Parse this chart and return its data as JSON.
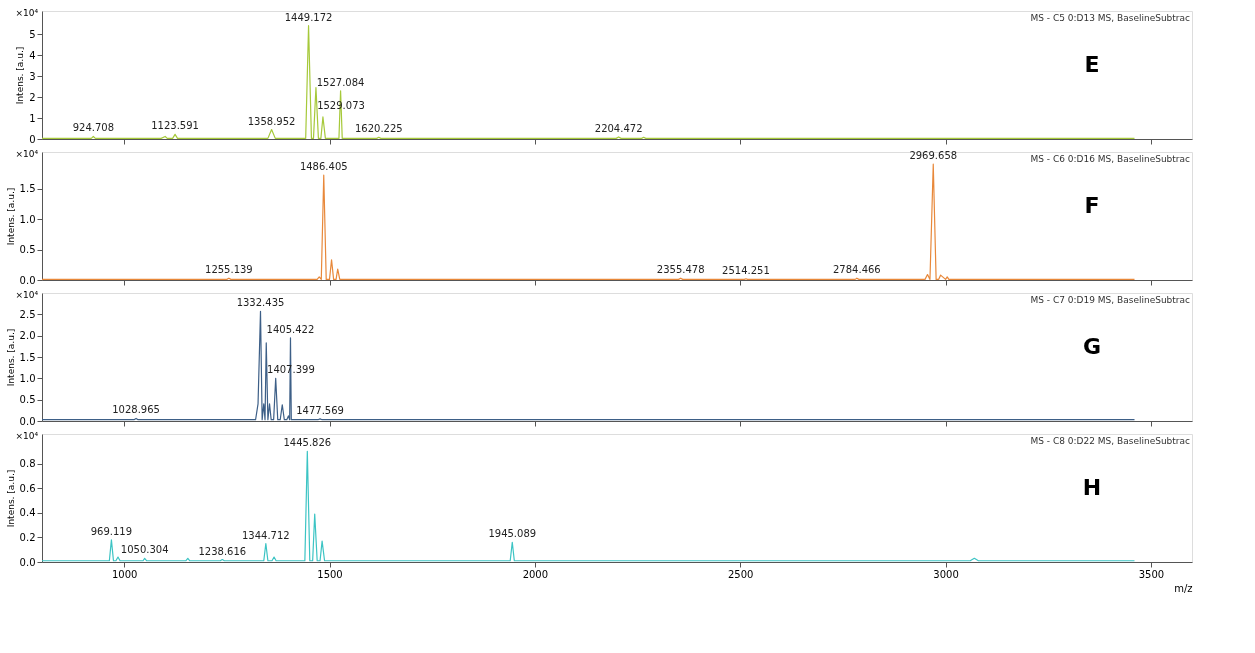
{
  "chart_data": [
    {
      "type": "line",
      "title": "MS - C5 0:D13 MS, BaselineSubtrac",
      "ylabel": "Intens. [a.u.]",
      "xlim": [
        800,
        3600
      ],
      "xticks": [
        1000,
        1500,
        2000,
        2500,
        3000,
        3500
      ],
      "ylim": [
        0,
        6.1
      ],
      "yticks": [
        0,
        1,
        2,
        3,
        4,
        5
      ],
      "tick_labels": "y",
      "annotations": [
        "×10⁴",
        "E",
        {
          "text": "1449.172",
          "x": 1449,
          "y": 5.4
        },
        {
          "text": "1527.084",
          "x": 1527,
          "y": 2.3
        },
        {
          "text": "1529.073",
          "x": 1528,
          "y": 1.2
        },
        {
          "text": "1358.952",
          "x": 1359,
          "y": 0.45
        },
        {
          "text": "924.708",
          "x": 925,
          "y": 0.12
        },
        {
          "text": "1123.591",
          "x": 1124,
          "y": 0.22
        },
        {
          "text": "1620.225",
          "x": 1620,
          "y": 0.08
        },
        {
          "text": "2204.472",
          "x": 2204,
          "y": 0.1
        }
      ],
      "series": [
        {
          "color": "#a6c93a",
          "x": [
            800,
            920,
            925,
            930,
            1090,
            1100,
            1105,
            1118,
            1124,
            1130,
            1350,
            1359,
            1368,
            1442,
            1449,
            1456,
            1461,
            1467,
            1473,
            1479,
            1484,
            1490,
            1523,
            1527,
            1531,
            1615,
            1620,
            1625,
            2198,
            2204,
            2210,
            2260,
            2265,
            2270,
            3460
          ],
          "values": [
            0.03,
            0.03,
            0.12,
            0.03,
            0.03,
            0.12,
            0.03,
            0.03,
            0.22,
            0.03,
            0.03,
            0.45,
            0.03,
            0.03,
            5.4,
            0.03,
            0.03,
            2.45,
            0.03,
            0.03,
            1.05,
            0.03,
            0.03,
            2.3,
            0.03,
            0.03,
            0.08,
            0.03,
            0.03,
            0.1,
            0.03,
            0.03,
            0.08,
            0.03,
            0.03
          ]
        }
      ]
    },
    {
      "type": "line",
      "title": "MS - C6 0:D16 MS, BaselineSubtrac",
      "ylabel": "Intens. [a.u.]",
      "xlim": [
        800,
        3600
      ],
      "xticks": [
        1000,
        1500,
        2000,
        2500,
        3000,
        3500
      ],
      "ylim": [
        0,
        2.1
      ],
      "yticks": [
        {
          "value": 0,
          "label": "0.0"
        },
        0.5,
        {
          "value": 1,
          "label": "1.0"
        },
        1.5
      ],
      "tick_labels": "y",
      "annotations": [
        "×10⁴",
        "F",
        {
          "text": "1486.405",
          "x": 1486,
          "y": 1.72
        },
        {
          "text": "1255.139",
          "x": 1255,
          "y": 0.03
        },
        {
          "text": "2355.478",
          "x": 2355,
          "y": 0.03
        },
        {
          "text": "2514.251",
          "x": 2514,
          "y": 0.02
        },
        {
          "text": "2784.466",
          "x": 2784,
          "y": 0.03
        },
        {
          "text": "2969.658",
          "x": 2970,
          "y": 1.9
        }
      ],
      "series": [
        {
          "color": "#e8883a",
          "x": [
            800,
            1250,
            1255,
            1260,
            1470,
            1475,
            1480,
            1486,
            1492,
            1500,
            1505,
            1510,
            1516,
            1520,
            1525,
            2350,
            2355,
            2360,
            2510,
            2514,
            2518,
            2780,
            2784,
            2789,
            2950,
            2956,
            2962,
            2970,
            2977,
            2983,
            2988,
            3000,
            3004,
            3008,
            3460
          ],
          "values": [
            0.01,
            0.01,
            0.03,
            0.01,
            0.01,
            0.05,
            0.01,
            1.72,
            0.01,
            0.01,
            0.33,
            0.01,
            0.01,
            0.18,
            0.01,
            0.01,
            0.03,
            0.01,
            0.01,
            0.02,
            0.01,
            0.01,
            0.03,
            0.01,
            0.01,
            0.09,
            0.01,
            1.9,
            0.01,
            0.01,
            0.08,
            0.01,
            0.05,
            0.01,
            0.01
          ]
        }
      ]
    },
    {
      "type": "line",
      "title": "MS - C7 0:D19 MS, BaselineSubtrac",
      "ylabel": "Intens. [a.u.]",
      "xlim": [
        800,
        3600
      ],
      "xticks": [
        1000,
        1500,
        2000,
        2500,
        3000,
        3500
      ],
      "ylim": [
        0,
        3.0
      ],
      "yticks": [
        {
          "value": 0,
          "label": "0.0"
        },
        0.5,
        {
          "value": 1,
          "label": "1.0"
        },
        1.5,
        {
          "value": 2,
          "label": "2.0"
        },
        2.5
      ],
      "tick_labels": "y",
      "annotations": [
        "×10⁴",
        "G",
        {
          "text": "1332.435",
          "x": 1332,
          "y": 2.57
        },
        {
          "text": "1405.422",
          "x": 1405,
          "y": 1.95
        },
        {
          "text": "1407.399",
          "x": 1406,
          "y": 1.0
        },
        {
          "text": "1028.965",
          "x": 1029,
          "y": 0.06
        },
        {
          "text": "1477.569",
          "x": 1477,
          "y": 0.05
        }
      ],
      "series": [
        {
          "color": "#3d5f87",
          "x": [
            800,
            1024,
            1029,
            1034,
            1320,
            1326,
            1332,
            1336,
            1340,
            1343,
            1346,
            1350,
            1354,
            1358,
            1364,
            1369,
            1374,
            1380,
            1385,
            1390,
            1396,
            1400,
            1403,
            1405,
            1407,
            1472,
            1477,
            1482,
            3460
          ],
          "values": [
            0.03,
            0.03,
            0.06,
            0.03,
            0.03,
            0.4,
            2.57,
            0.03,
            0.4,
            0.03,
            1.83,
            0.03,
            0.4,
            0.03,
            0.03,
            1.0,
            0.03,
            0.03,
            0.38,
            0.03,
            0.03,
            0.12,
            0.03,
            1.95,
            0.03,
            0.03,
            0.05,
            0.03,
            0.03
          ]
        }
      ]
    },
    {
      "type": "line",
      "title": "MS - C8 0:D22 MS, BaselineSubtrac",
      "ylabel": "Intens. [a.u.]",
      "xlabel": "m/z",
      "xlim": [
        800,
        3600
      ],
      "xticks": [
        1000,
        1500,
        2000,
        2500,
        3000,
        3500
      ],
      "ylim": [
        0,
        1.04
      ],
      "yticks": [
        {
          "value": 0,
          "label": "0.0"
        },
        0.2,
        0.4,
        0.6,
        0.8
      ],
      "annotations": [
        "×10⁴",
        "H",
        {
          "text": "1445.826",
          "x": 1446,
          "y": 0.9
        },
        {
          "text": "969.119",
          "x": 969,
          "y": 0.18
        },
        {
          "text": "1050.304",
          "x": 1050,
          "y": 0.03
        },
        {
          "text": "1238.616",
          "x": 1239,
          "y": 0.02
        },
        {
          "text": "1344.712",
          "x": 1345,
          "y": 0.15
        },
        {
          "text": "1945.089",
          "x": 1945,
          "y": 0.16
        }
      ],
      "series": [
        {
          "color": "#3cc4c4",
          "x": [
            800,
            964,
            969,
            974,
            980,
            985,
            990,
            1046,
            1050,
            1055,
            1150,
            1155,
            1160,
            1234,
            1239,
            1244,
            1340,
            1345,
            1350,
            1360,
            1365,
            1370,
            1440,
            1446,
            1452,
            1459,
            1464,
            1470,
            1477,
            1482,
            1488,
            1940,
            1945,
            1950,
            3060,
            3070,
            3080,
            3460
          ],
          "values": [
            0.01,
            0.01,
            0.18,
            0.01,
            0.01,
            0.04,
            0.01,
            0.01,
            0.03,
            0.01,
            0.01,
            0.03,
            0.01,
            0.01,
            0.02,
            0.01,
            0.01,
            0.15,
            0.01,
            0.01,
            0.04,
            0.01,
            0.01,
            0.9,
            0.01,
            0.01,
            0.39,
            0.01,
            0.01,
            0.17,
            0.01,
            0.01,
            0.16,
            0.01,
            0.01,
            0.03,
            0.01,
            0.01
          ]
        }
      ]
    }
  ]
}
